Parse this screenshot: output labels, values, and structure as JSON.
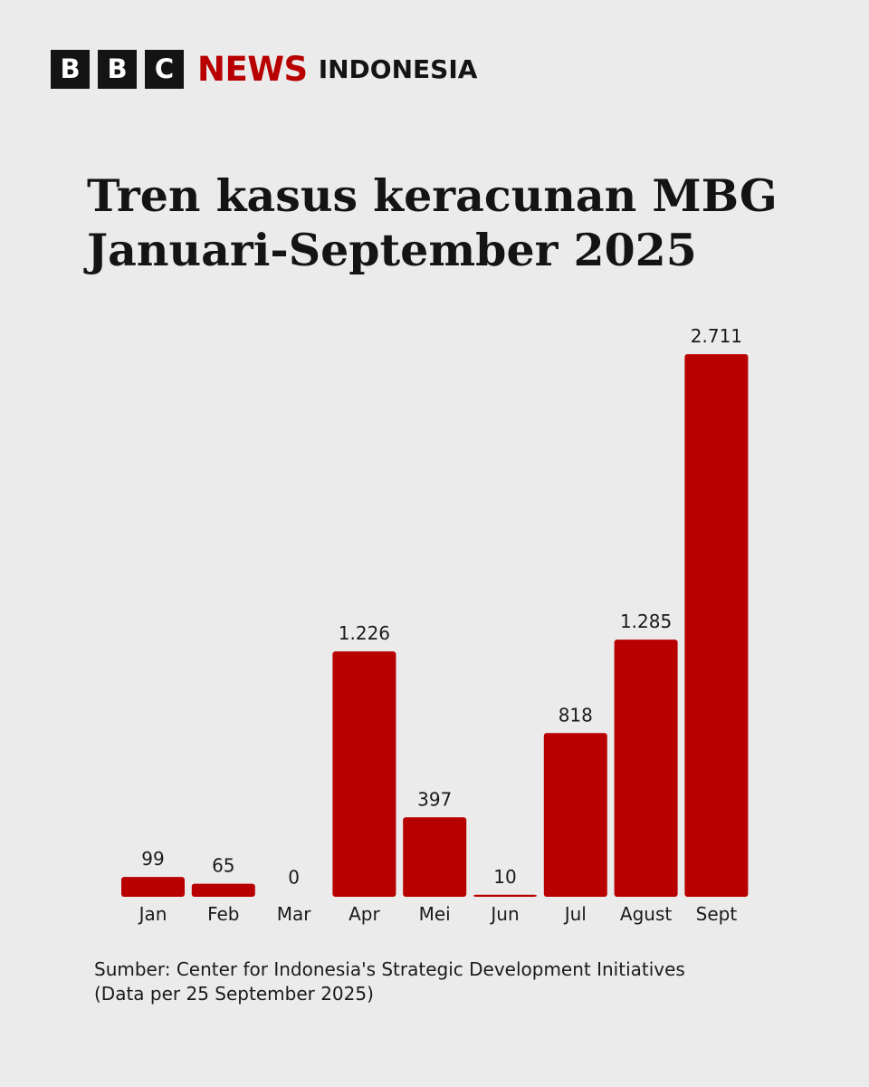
{
  "brand": {
    "bbc_letters": [
      "B",
      "B",
      "C"
    ],
    "news": "NEWS",
    "edition": "INDONESIA",
    "accent_color": "#b80000"
  },
  "chart_data": {
    "type": "bar",
    "title": "Tren kasus keracunan MBG Januari-September 2025",
    "title_lines": [
      "Tren kasus keracunan MBG",
      "Januari-September 2025"
    ],
    "categories": [
      "Jan",
      "Feb",
      "Mar",
      "Apr",
      "Mei",
      "Jun",
      "Jul",
      "Agust",
      "Sept"
    ],
    "values": [
      99,
      65,
      0,
      1226,
      397,
      10,
      818,
      1285,
      2711
    ],
    "value_labels": [
      "99",
      "65",
      "0",
      "1.226",
      "397",
      "10",
      "818",
      "1.285",
      "2.711"
    ],
    "xlabel": "",
    "ylabel": "",
    "ylim": [
      0,
      2711
    ],
    "grid": false,
    "bar_color": "#b80000"
  },
  "source": {
    "line1": "Sumber: Center for Indonesia's Strategic Development Initiatives",
    "line2": "(Data per 25 September 2025)"
  }
}
